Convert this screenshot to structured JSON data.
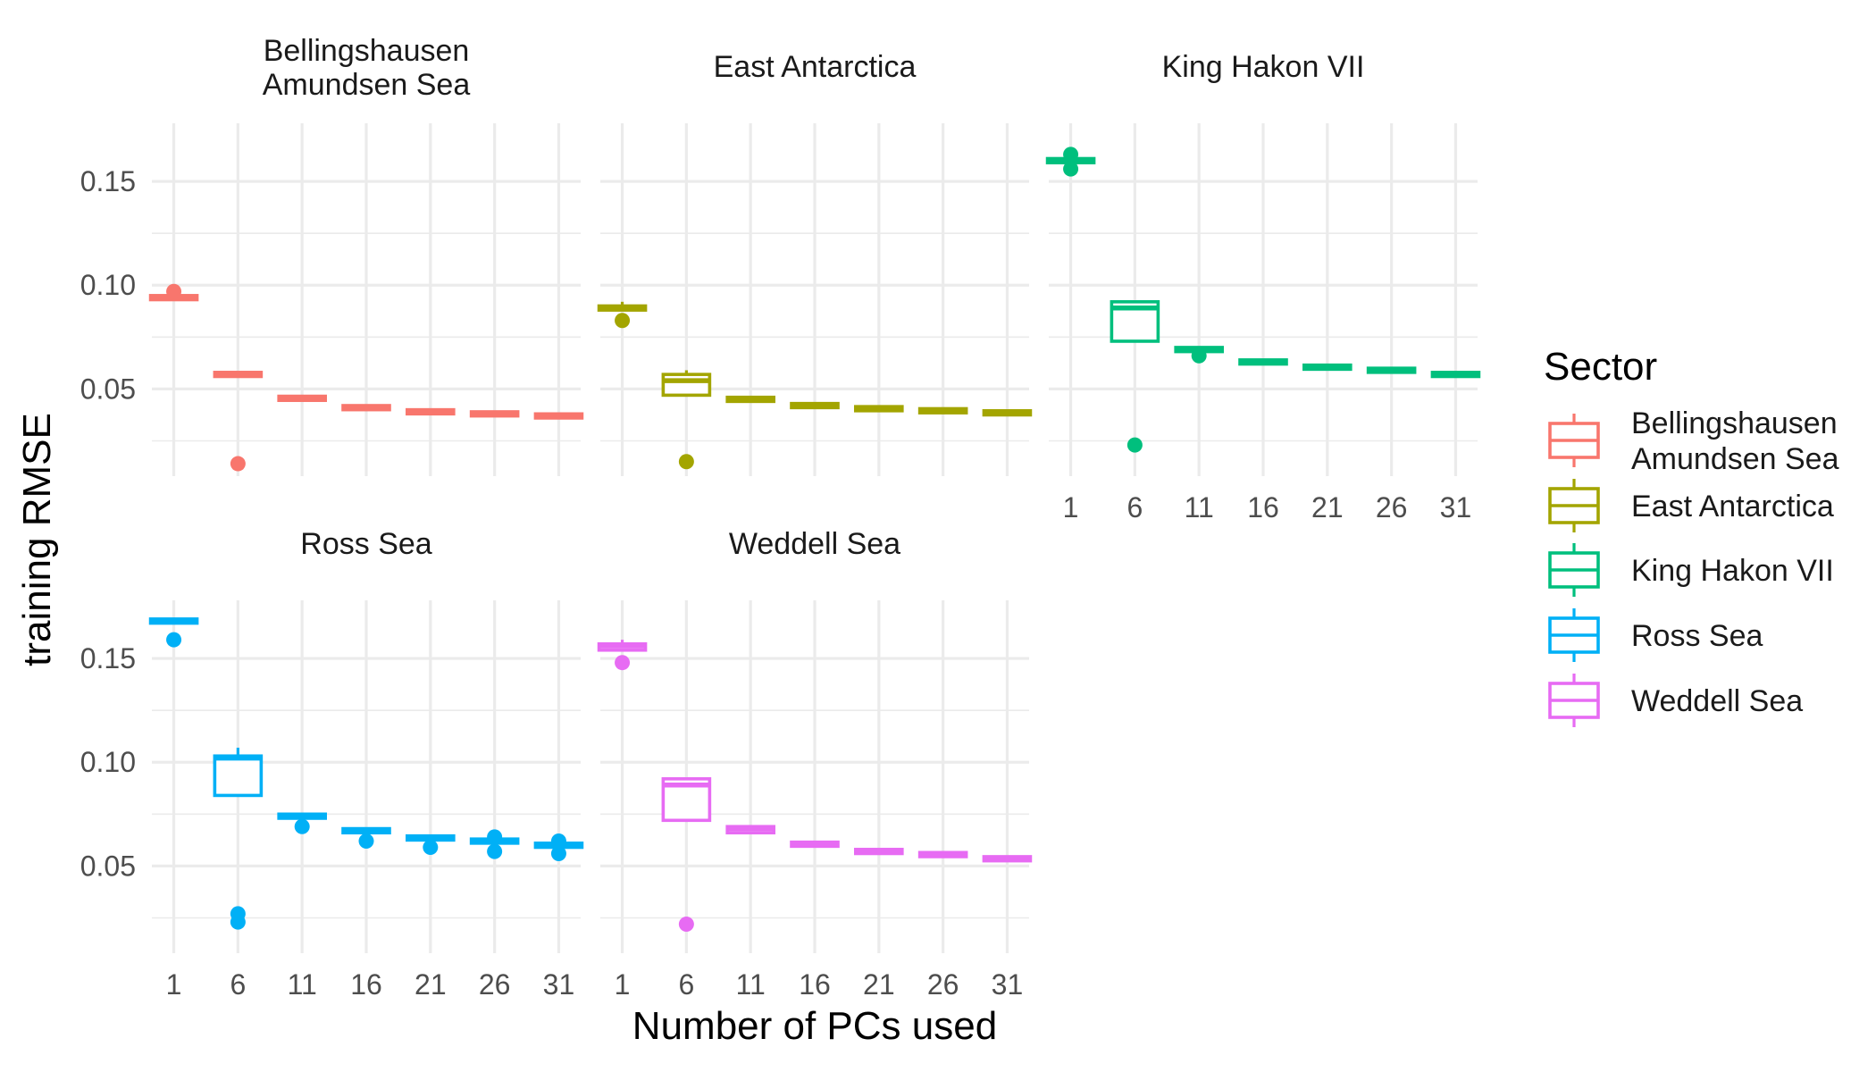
{
  "chart_data": {
    "type": "boxplot",
    "xlabel": "Number of PCs used",
    "ylabel": "training RMSE",
    "x": [
      1,
      6,
      11,
      16,
      21,
      26,
      31
    ],
    "x_ticks": [
      "1",
      "6",
      "11",
      "16",
      "21",
      "26",
      "31"
    ],
    "y_ticks": [
      "0.05",
      "0.10",
      "0.15"
    ],
    "y_tick_values": [
      0.05,
      0.1,
      0.15
    ],
    "ylim": [
      0.008,
      0.178
    ],
    "grid": true,
    "legend": {
      "title": "Sector",
      "placement": "right",
      "entries": [
        "Bellingshausen\nAmundsen Sea",
        "East Antarctica",
        "King Hakon VII",
        "Ross Sea",
        "Weddell Sea"
      ]
    },
    "panels": [
      {
        "name": "Bellingshausen\nAmundsen Sea",
        "color": "#F8766D",
        "boxes": [
          {
            "x": 1,
            "lower": 0.093,
            "q1": 0.093,
            "median": 0.094,
            "q3": 0.095,
            "upper": 0.095,
            "outliers": [
              0.097
            ]
          },
          {
            "x": 6,
            "lower": 0.056,
            "q1": 0.056,
            "median": 0.057,
            "q3": 0.058,
            "upper": 0.058,
            "outliers": [
              0.014
            ]
          },
          {
            "x": 11,
            "lower": 0.0445,
            "q1": 0.0445,
            "median": 0.0455,
            "q3": 0.0465,
            "upper": 0.0465,
            "outliers": []
          },
          {
            "x": 16,
            "lower": 0.04,
            "q1": 0.04,
            "median": 0.041,
            "q3": 0.042,
            "upper": 0.042,
            "outliers": []
          },
          {
            "x": 21,
            "lower": 0.038,
            "q1": 0.038,
            "median": 0.039,
            "q3": 0.04,
            "upper": 0.04,
            "outliers": []
          },
          {
            "x": 26,
            "lower": 0.037,
            "q1": 0.037,
            "median": 0.038,
            "q3": 0.039,
            "upper": 0.039,
            "outliers": []
          },
          {
            "x": 31,
            "lower": 0.036,
            "q1": 0.036,
            "median": 0.037,
            "q3": 0.038,
            "upper": 0.038,
            "outliers": []
          }
        ]
      },
      {
        "name": "East Antarctica",
        "color": "#A3A500",
        "boxes": [
          {
            "x": 1,
            "lower": 0.088,
            "q1": 0.088,
            "median": 0.089,
            "q3": 0.09,
            "upper": 0.092,
            "outliers": [
              0.083
            ]
          },
          {
            "x": 6,
            "lower": 0.047,
            "q1": 0.047,
            "median": 0.054,
            "q3": 0.057,
            "upper": 0.059,
            "outliers": [
              0.015
            ]
          },
          {
            "x": 11,
            "lower": 0.044,
            "q1": 0.044,
            "median": 0.045,
            "q3": 0.046,
            "upper": 0.046,
            "outliers": []
          },
          {
            "x": 16,
            "lower": 0.041,
            "q1": 0.041,
            "median": 0.042,
            "q3": 0.043,
            "upper": 0.043,
            "outliers": []
          },
          {
            "x": 21,
            "lower": 0.0395,
            "q1": 0.0395,
            "median": 0.0405,
            "q3": 0.0415,
            "upper": 0.0415,
            "outliers": []
          },
          {
            "x": 26,
            "lower": 0.0385,
            "q1": 0.0385,
            "median": 0.0395,
            "q3": 0.0405,
            "upper": 0.0405,
            "outliers": []
          },
          {
            "x": 31,
            "lower": 0.0375,
            "q1": 0.0375,
            "median": 0.0385,
            "q3": 0.0395,
            "upper": 0.0395,
            "outliers": []
          }
        ]
      },
      {
        "name": "King Hakon VII",
        "color": "#00BF7D",
        "boxes": [
          {
            "x": 1,
            "lower": 0.159,
            "q1": 0.159,
            "median": 0.16,
            "q3": 0.161,
            "upper": 0.161,
            "outliers": [
              0.163,
              0.156
            ]
          },
          {
            "x": 6,
            "lower": 0.073,
            "q1": 0.073,
            "median": 0.089,
            "q3": 0.092,
            "upper": 0.092,
            "outliers": [
              0.023
            ]
          },
          {
            "x": 11,
            "lower": 0.068,
            "q1": 0.068,
            "median": 0.069,
            "q3": 0.07,
            "upper": 0.07,
            "outliers": [
              0.066
            ]
          },
          {
            "x": 16,
            "lower": 0.062,
            "q1": 0.062,
            "median": 0.063,
            "q3": 0.064,
            "upper": 0.064,
            "outliers": []
          },
          {
            "x": 21,
            "lower": 0.0595,
            "q1": 0.0595,
            "median": 0.0605,
            "q3": 0.0615,
            "upper": 0.0615,
            "outliers": []
          },
          {
            "x": 26,
            "lower": 0.058,
            "q1": 0.058,
            "median": 0.059,
            "q3": 0.06,
            "upper": 0.06,
            "outliers": []
          },
          {
            "x": 31,
            "lower": 0.056,
            "q1": 0.056,
            "median": 0.057,
            "q3": 0.058,
            "upper": 0.058,
            "outliers": []
          }
        ]
      },
      {
        "name": "Ross Sea",
        "color": "#00B0F6",
        "boxes": [
          {
            "x": 1,
            "lower": 0.167,
            "q1": 0.167,
            "median": 0.168,
            "q3": 0.169,
            "upper": 0.169,
            "outliers": [
              0.159
            ]
          },
          {
            "x": 6,
            "lower": 0.084,
            "q1": 0.084,
            "median": 0.102,
            "q3": 0.103,
            "upper": 0.107,
            "outliers": [
              0.027,
              0.023
            ]
          },
          {
            "x": 11,
            "lower": 0.073,
            "q1": 0.073,
            "median": 0.074,
            "q3": 0.075,
            "upper": 0.075,
            "outliers": [
              0.069
            ]
          },
          {
            "x": 16,
            "lower": 0.066,
            "q1": 0.066,
            "median": 0.067,
            "q3": 0.068,
            "upper": 0.068,
            "outliers": [
              0.062
            ]
          },
          {
            "x": 21,
            "lower": 0.0625,
            "q1": 0.0625,
            "median": 0.0635,
            "q3": 0.0645,
            "upper": 0.0645,
            "outliers": [
              0.059
            ]
          },
          {
            "x": 26,
            "lower": 0.061,
            "q1": 0.061,
            "median": 0.062,
            "q3": 0.063,
            "upper": 0.063,
            "outliers": [
              0.064,
              0.057
            ]
          },
          {
            "x": 31,
            "lower": 0.059,
            "q1": 0.059,
            "median": 0.06,
            "q3": 0.061,
            "upper": 0.061,
            "outliers": [
              0.062,
              0.056
            ]
          }
        ]
      },
      {
        "name": "Weddell Sea",
        "color": "#E76BF3",
        "boxes": [
          {
            "x": 1,
            "lower": 0.154,
            "q1": 0.154,
            "median": 0.156,
            "q3": 0.157,
            "upper": 0.159,
            "outliers": [
              0.148
            ]
          },
          {
            "x": 6,
            "lower": 0.072,
            "q1": 0.072,
            "median": 0.089,
            "q3": 0.092,
            "upper": 0.092,
            "outliers": [
              0.022
            ]
          },
          {
            "x": 11,
            "lower": 0.066,
            "q1": 0.066,
            "median": 0.068,
            "q3": 0.069,
            "upper": 0.069,
            "outliers": []
          },
          {
            "x": 16,
            "lower": 0.0595,
            "q1": 0.0595,
            "median": 0.0605,
            "q3": 0.0615,
            "upper": 0.0615,
            "outliers": []
          },
          {
            "x": 21,
            "lower": 0.056,
            "q1": 0.056,
            "median": 0.057,
            "q3": 0.058,
            "upper": 0.058,
            "outliers": []
          },
          {
            "x": 26,
            "lower": 0.0545,
            "q1": 0.0545,
            "median": 0.0555,
            "q3": 0.0565,
            "upper": 0.0565,
            "outliers": []
          },
          {
            "x": 31,
            "lower": 0.0525,
            "q1": 0.0525,
            "median": 0.0535,
            "q3": 0.0545,
            "upper": 0.0545,
            "outliers": []
          }
        ]
      }
    ]
  }
}
